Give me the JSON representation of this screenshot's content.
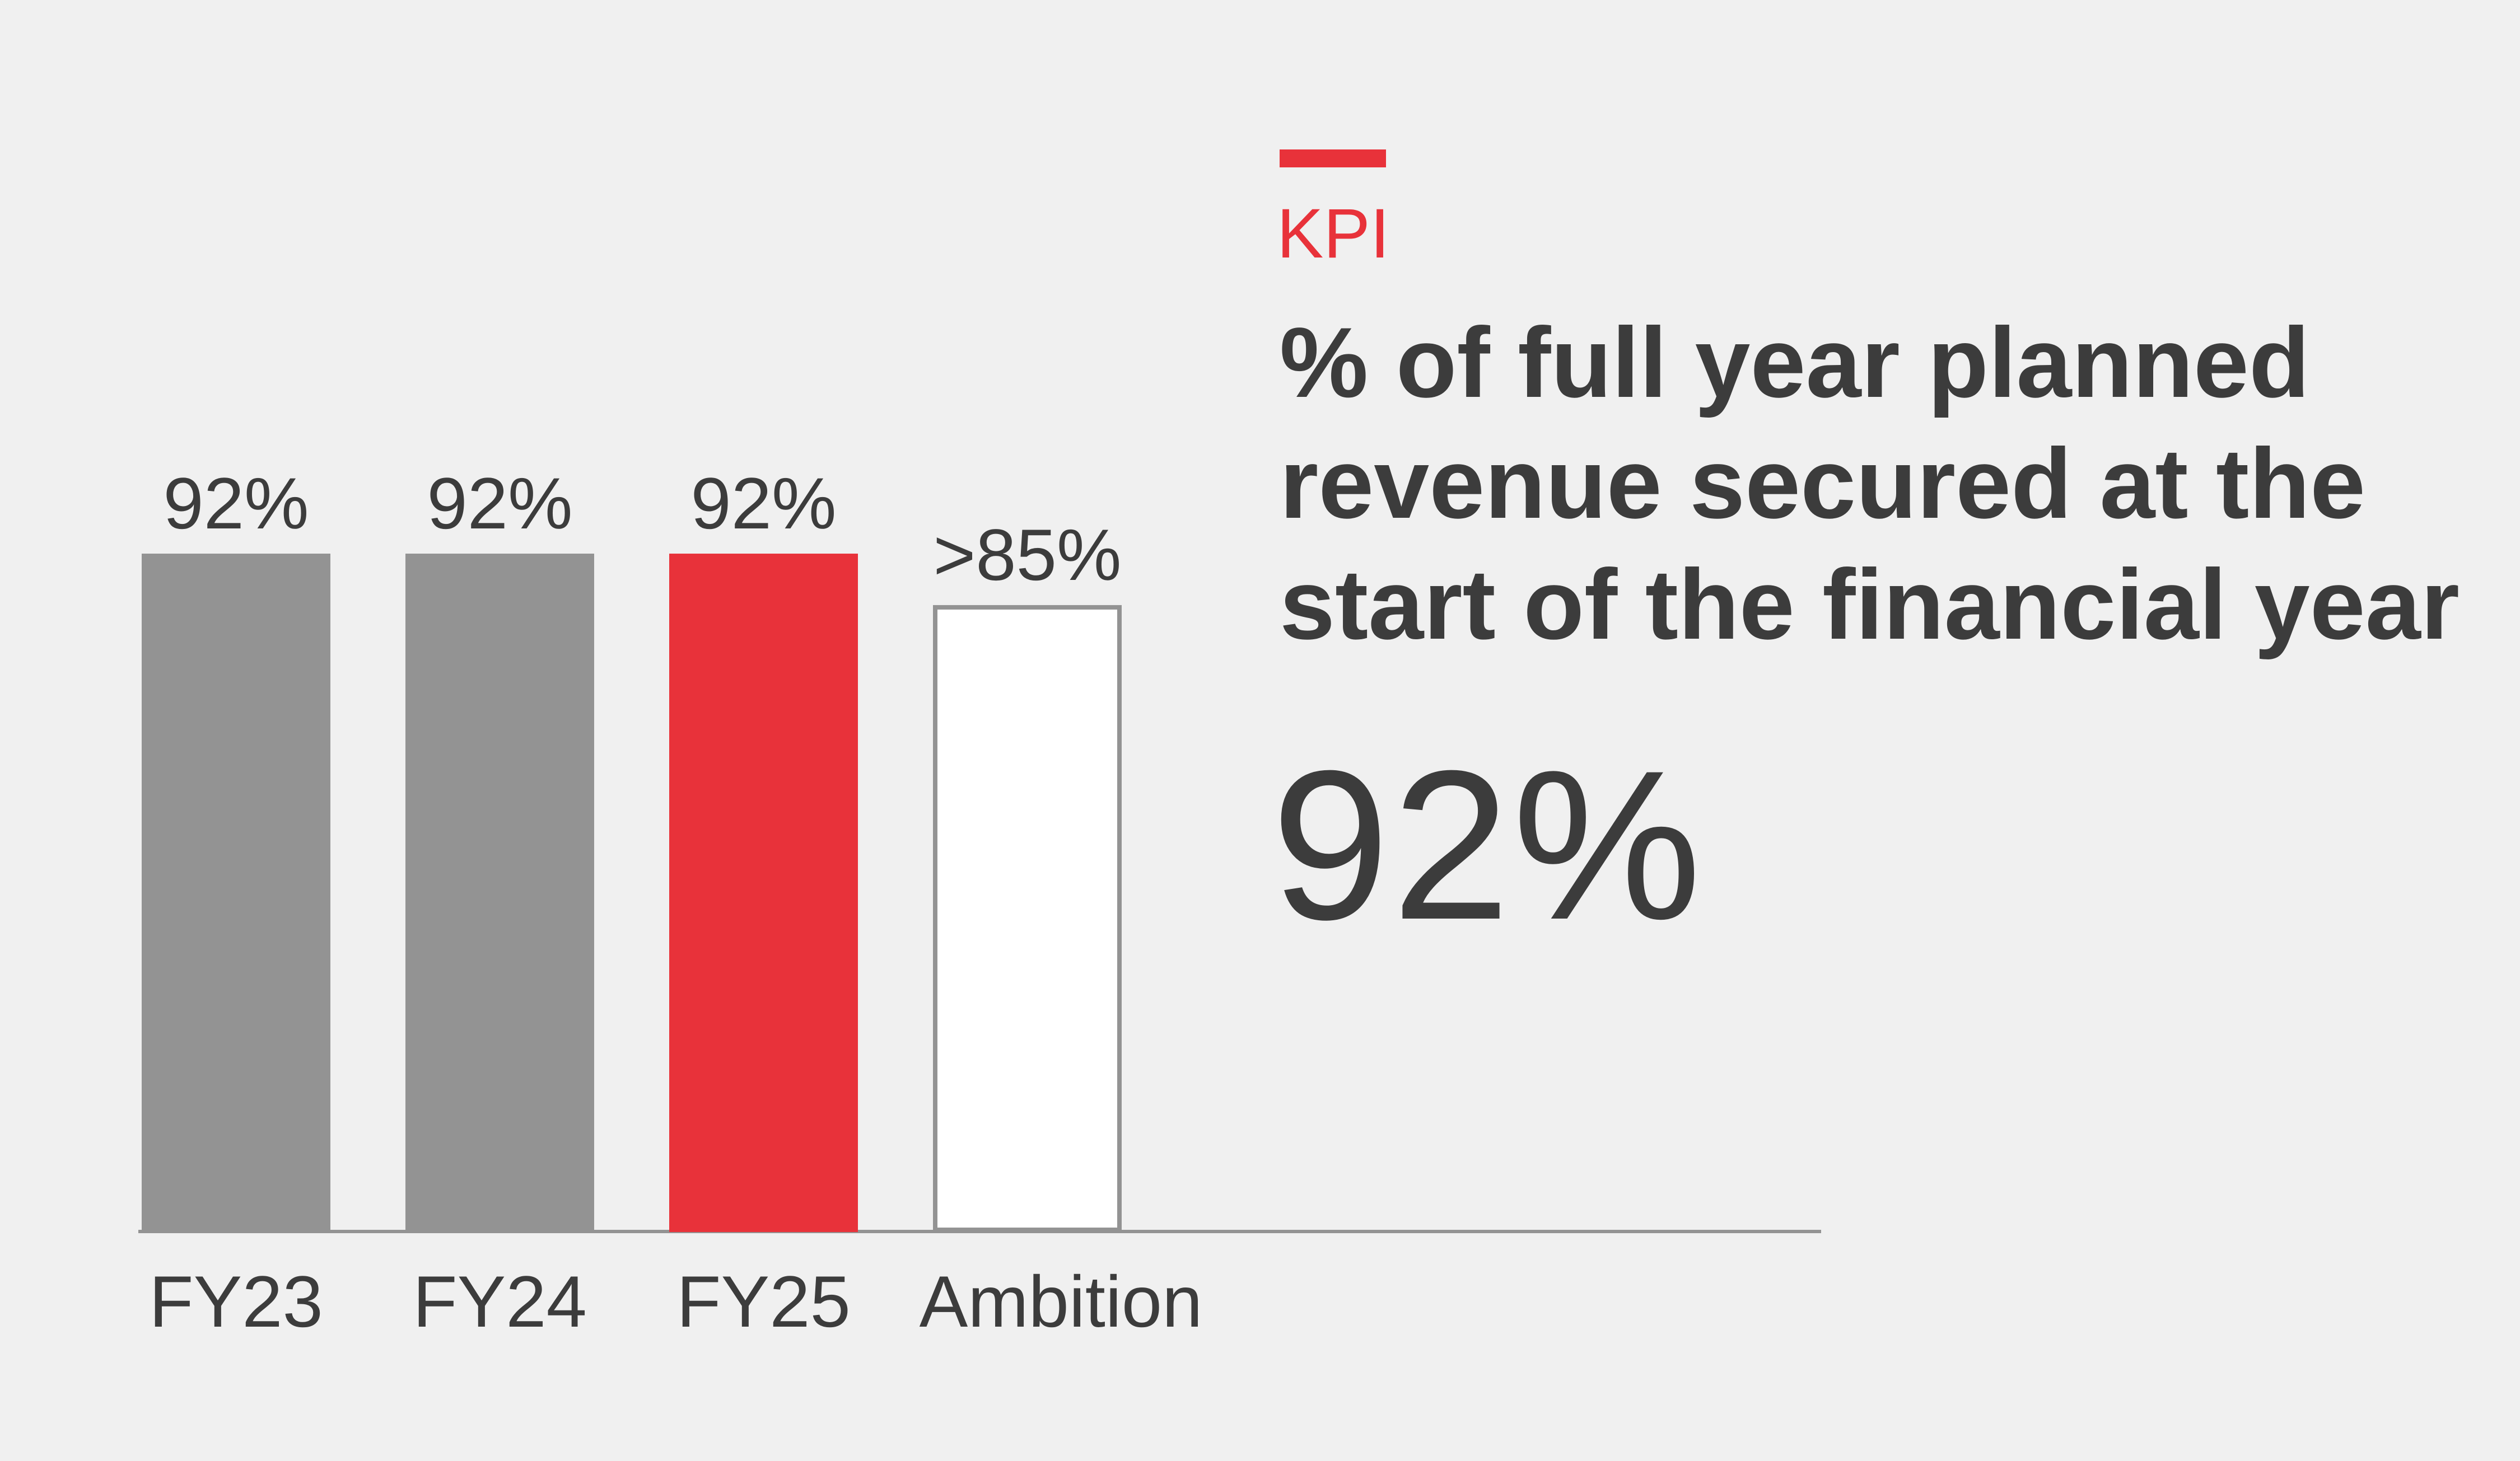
{
  "chart_data": {
    "type": "bar",
    "kpi_label": "KPI",
    "title": "% of full year planned revenue secured at the start of the financial year",
    "headline": "92%",
    "categories": [
      "FY23",
      "FY24",
      "FY25",
      "Ambition"
    ],
    "values": [
      92,
      92,
      92,
      85
    ],
    "value_labels": [
      "92%",
      "92%",
      "92%",
      ">85%"
    ],
    "colors": [
      "#939393",
      "#939393",
      "#e8323a",
      "#ffffff"
    ],
    "edgecolors": [
      "#939393",
      "#939393",
      "#e8323a",
      "#939393"
    ]
  }
}
